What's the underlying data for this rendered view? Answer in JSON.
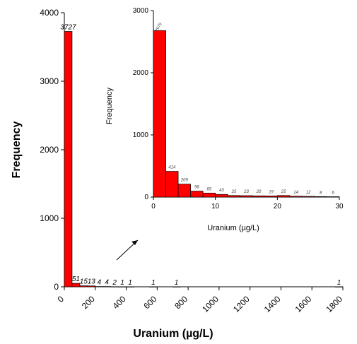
{
  "chart_data": [
    {
      "type": "bar",
      "xlabel": "Uranium (µg/L)",
      "ylabel": "Frequency",
      "xlim": [
        0,
        1800
      ],
      "ylim": [
        0,
        4000
      ],
      "xticks": [
        "0",
        "200",
        "400",
        "600",
        "800",
        "1000",
        "1200",
        "1400",
        "1600",
        "1800"
      ],
      "yticks": [
        "0",
        "1000",
        "2000",
        "3000",
        "4000"
      ],
      "bin_width": 50,
      "x": [
        25,
        75,
        125,
        175,
        225,
        275,
        325,
        375,
        425,
        575,
        725,
        1775
      ],
      "values": [
        3727,
        51,
        15,
        13,
        4,
        4,
        2,
        1,
        1,
        1,
        1,
        1
      ],
      "labels": [
        "3727",
        "51",
        "15",
        "13",
        "4",
        "4",
        "2",
        "1",
        "1",
        "1",
        "1",
        "1"
      ],
      "bar_color": "#ff0000"
    },
    {
      "type": "bar",
      "xlabel": "Uranium (µg/L)",
      "ylabel": "Frequency",
      "xlim": [
        0,
        30
      ],
      "ylim": [
        0,
        3000
      ],
      "xticks": [
        "0",
        "10",
        "20",
        "30"
      ],
      "yticks": [
        "0",
        "1000",
        "2000",
        "3000"
      ],
      "bin_width": 2,
      "x": [
        1,
        3,
        5,
        7,
        9,
        11,
        13,
        15,
        17,
        19,
        21,
        23,
        25,
        27,
        29
      ],
      "values": [
        2679,
        414,
        209,
        96,
        65,
        43,
        25,
        23,
        20,
        19,
        25,
        14,
        12,
        8,
        6
      ],
      "labels": [
        "2679",
        "414",
        "209",
        "96",
        "65",
        "43",
        "25",
        "23",
        "20",
        "19",
        "25",
        "14",
        "12",
        "8",
        "6"
      ],
      "bar_color": "#ff0000"
    }
  ]
}
